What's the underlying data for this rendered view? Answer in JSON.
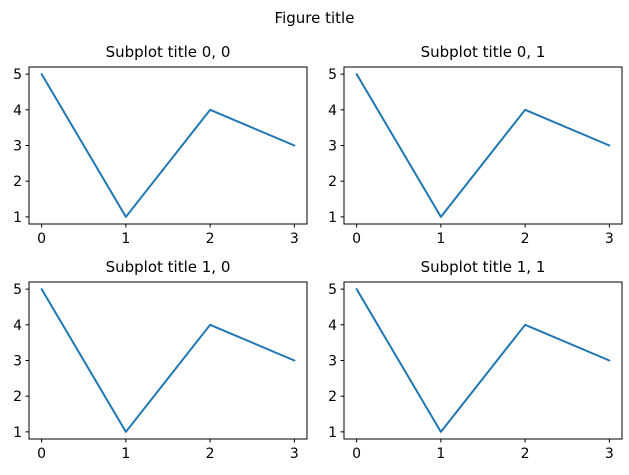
{
  "figure": {
    "title": "Figure title",
    "background_color": "#ffffff",
    "text_color": "#000000"
  },
  "chart_data": [
    {
      "type": "line",
      "title": "Subplot title 0, 0",
      "x": [
        0,
        1,
        2,
        3
      ],
      "y": [
        5,
        1,
        4,
        3
      ],
      "xticks": [
        "0",
        "1",
        "2",
        "3"
      ],
      "yticks": [
        "1",
        "2",
        "3",
        "4",
        "5"
      ],
      "xlim": [
        -0.15,
        3.15
      ],
      "ylim": [
        0.8,
        5.2
      ],
      "line_color": "#1f77b4",
      "grid": false,
      "xlabel": "",
      "ylabel": "",
      "legend": null
    },
    {
      "type": "line",
      "title": "Subplot title 0, 1",
      "x": [
        0,
        1,
        2,
        3
      ],
      "y": [
        5,
        1,
        4,
        3
      ],
      "xticks": [
        "0",
        "1",
        "2",
        "3"
      ],
      "yticks": [
        "1",
        "2",
        "3",
        "4",
        "5"
      ],
      "xlim": [
        -0.15,
        3.15
      ],
      "ylim": [
        0.8,
        5.2
      ],
      "line_color": "#1f77b4",
      "grid": false,
      "xlabel": "",
      "ylabel": "",
      "legend": null
    },
    {
      "type": "line",
      "title": "Subplot title 1, 0",
      "x": [
        0,
        1,
        2,
        3
      ],
      "y": [
        5,
        1,
        4,
        3
      ],
      "xticks": [
        "0",
        "1",
        "2",
        "3"
      ],
      "yticks": [
        "1",
        "2",
        "3",
        "4",
        "5"
      ],
      "xlim": [
        -0.15,
        3.15
      ],
      "ylim": [
        0.8,
        5.2
      ],
      "line_color": "#1f77b4",
      "grid": false,
      "xlabel": "",
      "ylabel": "",
      "legend": null
    },
    {
      "type": "line",
      "title": "Subplot title 1, 1",
      "x": [
        0,
        1,
        2,
        3
      ],
      "y": [
        5,
        1,
        4,
        3
      ],
      "xticks": [
        "0",
        "1",
        "2",
        "3"
      ],
      "yticks": [
        "1",
        "2",
        "3",
        "4",
        "5"
      ],
      "xlim": [
        -0.15,
        3.15
      ],
      "ylim": [
        0.8,
        5.2
      ],
      "line_color": "#1f77b4",
      "grid": false,
      "xlabel": "",
      "ylabel": "",
      "legend": null
    }
  ]
}
